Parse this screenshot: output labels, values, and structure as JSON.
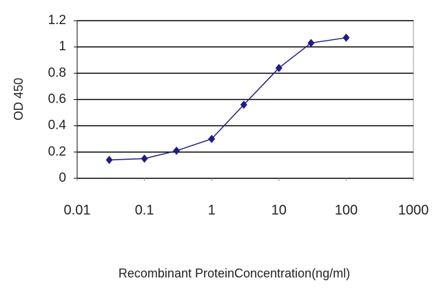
{
  "chart_data": {
    "type": "line",
    "x_label": "Recombinant ProteinConcentration(ng/ml)",
    "y_label": "OD 450",
    "x": [
      0.03,
      0.1,
      0.3,
      1,
      3,
      10,
      30,
      100
    ],
    "values": [
      0.14,
      0.15,
      0.21,
      0.3,
      0.56,
      0.84,
      1.03,
      1.07
    ],
    "color": "#1c1c8f",
    "xscale": "log",
    "xlim": [
      0.01,
      1000
    ],
    "xticks": [
      0.01,
      0.1,
      1,
      10,
      100,
      1000
    ],
    "ylim": [
      0,
      1.2
    ],
    "yticks": [
      0,
      0.2,
      0.4,
      0.6,
      0.8,
      1,
      1.2
    ],
    "grid": true
  }
}
